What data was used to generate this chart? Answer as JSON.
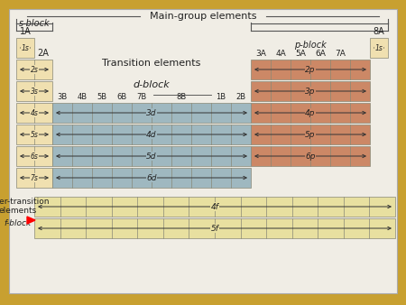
{
  "bg_outer": "#c8a030",
  "bg_inner": "#f0ede5",
  "s_color": "#f0e0b0",
  "p_color": "#cc8866",
  "d_color": "#9fb8c0",
  "f_color": "#e8e0a0",
  "edge_color": "#888877",
  "dark_edge": "#555544",
  "title": "Main-group elements",
  "s_block_label": "s-block",
  "p_block_label": "p-block",
  "transition_label1": "Transition elements",
  "transition_label2": "d-block",
  "f_label1": "Inner-transition",
  "f_label2": "elements",
  "f_label3": "f-block",
  "col_headers_d": [
    "3B",
    "4B",
    "5B",
    "6B",
    "7B",
    "8B",
    "1B",
    "2B"
  ],
  "col_headers_p": [
    "3A",
    "4A",
    "5A",
    "6A",
    "7A"
  ],
  "s_orb": [
    "1s",
    "2s",
    "3s",
    "4s",
    "5s",
    "6s",
    "7s"
  ],
  "d_orb": [
    "3d",
    "4d",
    "5d",
    "6d"
  ],
  "p_orb": [
    "2p",
    "3p",
    "4p",
    "5p",
    "6p"
  ],
  "f_orb": [
    "4f",
    "5f"
  ],
  "lbl_1A": "1A",
  "lbl_2A": "2A",
  "lbl_8A": "8A"
}
